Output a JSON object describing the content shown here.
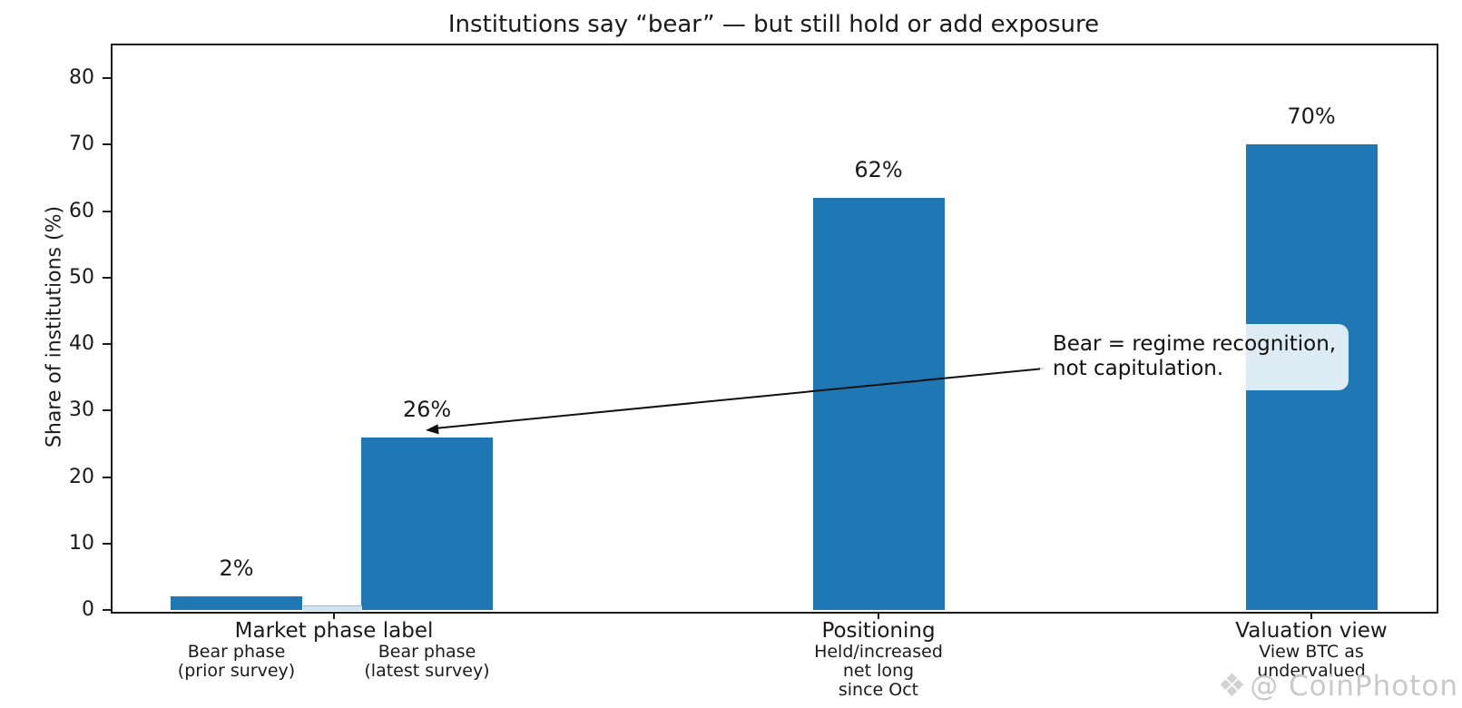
{
  "chart_data": {
    "type": "bar",
    "title": "Institutions say “bear” — but still hold or add exposure",
    "ylabel": "Share of institutions (%)",
    "xlabel": "",
    "ylim": [
      0,
      85
    ],
    "yticks": [
      0,
      10,
      20,
      30,
      40,
      50,
      60,
      70,
      80
    ],
    "grid": false,
    "legend": false,
    "bar_color": "#1f77b4",
    "categories": [
      "Market phase label",
      "Positioning",
      "Valuation view"
    ],
    "groups": [
      {
        "label": "Market phase label",
        "bars": [
          {
            "name": "Bear phase (prior survey)",
            "sublabel_lines": [
              "Bear phase",
              "(prior survey)"
            ],
            "value": 2,
            "value_label": "2%"
          },
          {
            "name": "Bear phase (latest survey)",
            "sublabel_lines": [
              "Bear phase",
              "(latest survey)"
            ],
            "value": 26,
            "value_label": "26%"
          }
        ]
      },
      {
        "label": "Positioning",
        "bars": [
          {
            "name": "Held/increased net long since Oct",
            "sublabel_lines": [
              "Held/increased",
              "net long",
              "since Oct"
            ],
            "value": 62,
            "value_label": "62%"
          }
        ]
      },
      {
        "label": "Valuation view",
        "bars": [
          {
            "name": "View BTC as undervalued",
            "sublabel_lines": [
              "View BTC as",
              "undervalued"
            ],
            "value": 70,
            "value_label": "70%"
          }
        ]
      }
    ],
    "annotation": {
      "lines": [
        "Bear = regime recognition,",
        "not capitulation."
      ],
      "target": "top of Bear phase (latest survey) bar"
    }
  },
  "watermark": {
    "icon": "gem-icon",
    "text": "@ CoinPhoton",
    "color": "#c9c9c9"
  }
}
